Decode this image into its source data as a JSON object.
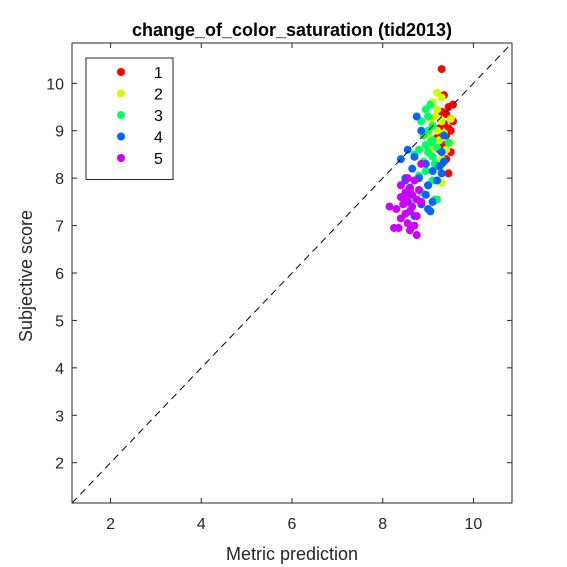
{
  "chart_data": {
    "type": "scatter",
    "title": "change_of_color_saturation (tid2013)",
    "xlabel": "Metric prediction",
    "ylabel": "Subjective score",
    "xlim": [
      1.15,
      10.85
    ],
    "ylim": [
      1.15,
      10.85
    ],
    "xticks": [
      "2",
      "4",
      "6",
      "8",
      "10"
    ],
    "yticks": [
      "2",
      "3",
      "4",
      "5",
      "6",
      "7",
      "8",
      "9",
      "10"
    ],
    "diagonal": "dashed y = x",
    "grid": false,
    "legend_position": "top-left",
    "series": [
      {
        "name": "1",
        "color": "#ff0000",
        "points": [
          [
            9.3,
            10.3
          ],
          [
            9.35,
            9.75
          ],
          [
            9.45,
            9.5
          ],
          [
            9.55,
            9.55
          ],
          [
            9.3,
            9.4
          ],
          [
            9.4,
            9.35
          ],
          [
            9.5,
            9.25
          ],
          [
            9.55,
            9.2
          ],
          [
            9.35,
            9.15
          ],
          [
            9.45,
            9.05
          ],
          [
            9.25,
            9.05
          ],
          [
            9.5,
            9.0
          ],
          [
            9.3,
            8.95
          ],
          [
            9.4,
            8.9
          ],
          [
            9.2,
            8.85
          ],
          [
            9.45,
            8.75
          ],
          [
            9.35,
            8.7
          ],
          [
            9.5,
            8.55
          ],
          [
            9.4,
            8.4
          ],
          [
            9.3,
            8.3
          ],
          [
            9.45,
            8.1
          ],
          [
            9.25,
            8.6
          ]
        ]
      },
      {
        "name": "2",
        "color": "#ccff00",
        "points": [
          [
            9.2,
            9.8
          ],
          [
            9.3,
            9.7
          ],
          [
            9.1,
            9.6
          ],
          [
            9.2,
            9.45
          ],
          [
            9.15,
            9.3
          ],
          [
            9.05,
            9.25
          ],
          [
            9.5,
            9.25
          ],
          [
            9.3,
            9.2
          ],
          [
            9.1,
            9.1
          ],
          [
            9.2,
            9.0
          ],
          [
            9.35,
            8.95
          ],
          [
            9.0,
            8.9
          ],
          [
            9.25,
            8.8
          ],
          [
            9.5,
            8.75
          ],
          [
            9.15,
            8.65
          ],
          [
            9.4,
            8.6
          ],
          [
            9.05,
            8.5
          ],
          [
            9.3,
            8.4
          ],
          [
            9.2,
            8.2
          ],
          [
            9.3,
            7.9
          ],
          [
            9.0,
            8.6
          ]
        ]
      },
      {
        "name": "3",
        "color": "#00ff66",
        "points": [
          [
            9.05,
            9.55
          ],
          [
            8.95,
            9.45
          ],
          [
            9.0,
            9.3
          ],
          [
            8.85,
            9.2
          ],
          [
            9.1,
            9.1
          ],
          [
            9.0,
            9.0
          ],
          [
            8.9,
            8.9
          ],
          [
            9.1,
            8.8
          ],
          [
            9.45,
            8.75
          ],
          [
            8.95,
            8.7
          ],
          [
            9.2,
            8.65
          ],
          [
            8.8,
            8.6
          ],
          [
            9.0,
            8.55
          ],
          [
            9.1,
            8.45
          ],
          [
            8.9,
            8.35
          ],
          [
            8.7,
            8.5
          ],
          [
            9.15,
            8.3
          ],
          [
            8.95,
            8.15
          ],
          [
            8.8,
            8.05
          ],
          [
            9.1,
            7.95
          ],
          [
            9.0,
            7.85
          ],
          [
            9.15,
            7.55
          ],
          [
            9.2,
            7.55
          ],
          [
            8.85,
            7.7
          ],
          [
            9.05,
            8.75
          ],
          [
            8.6,
            7.5
          ]
        ]
      },
      {
        "name": "4",
        "color": "#0066ff",
        "points": [
          [
            8.75,
            9.3
          ],
          [
            8.85,
            9.0
          ],
          [
            9.35,
            8.9
          ],
          [
            8.55,
            8.6
          ],
          [
            9.3,
            8.55
          ],
          [
            8.7,
            8.45
          ],
          [
            8.4,
            8.4
          ],
          [
            9.35,
            8.35
          ],
          [
            8.95,
            8.3
          ],
          [
            9.25,
            8.25
          ],
          [
            8.65,
            8.2
          ],
          [
            9.1,
            8.15
          ],
          [
            9.3,
            8.1
          ],
          [
            8.8,
            8.0
          ],
          [
            8.5,
            7.95
          ],
          [
            9.2,
            7.95
          ],
          [
            9.0,
            7.85
          ],
          [
            8.6,
            7.75
          ],
          [
            8.95,
            7.65
          ],
          [
            9.1,
            7.5
          ],
          [
            8.85,
            7.45
          ],
          [
            9.0,
            7.35
          ],
          [
            9.05,
            7.3
          ],
          [
            8.7,
            7.2
          ],
          [
            8.5,
            8.0
          ]
        ]
      },
      {
        "name": "5",
        "color": "#cc00ff",
        "points": [
          [
            8.85,
            8.3
          ],
          [
            8.55,
            8.0
          ],
          [
            8.7,
            7.95
          ],
          [
            8.4,
            7.85
          ],
          [
            8.6,
            7.8
          ],
          [
            8.8,
            7.75
          ],
          [
            8.5,
            7.7
          ],
          [
            8.65,
            7.65
          ],
          [
            8.4,
            7.6
          ],
          [
            8.75,
            7.55
          ],
          [
            8.55,
            7.5
          ],
          [
            8.85,
            7.5
          ],
          [
            8.45,
            7.45
          ],
          [
            8.65,
            7.4
          ],
          [
            8.15,
            7.4
          ],
          [
            8.3,
            7.35
          ],
          [
            8.6,
            7.3
          ],
          [
            8.5,
            7.25
          ],
          [
            8.75,
            7.2
          ],
          [
            8.4,
            7.15
          ],
          [
            8.55,
            7.05
          ],
          [
            8.7,
            7.0
          ],
          [
            8.35,
            6.95
          ],
          [
            8.25,
            6.95
          ],
          [
            8.6,
            6.9
          ],
          [
            8.75,
            6.8
          ],
          [
            8.5,
            7.6
          ]
        ]
      }
    ]
  }
}
